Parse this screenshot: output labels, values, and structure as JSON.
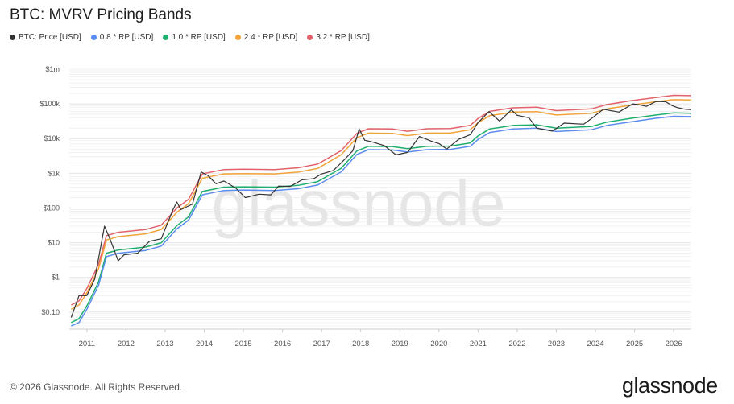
{
  "colors": {
    "price": "#333333",
    "rp08": "#5b8def",
    "rp10": "#1fae6e",
    "rp24": "#f2a33a",
    "rp32": "#e2636b"
  },
  "chart_data": {
    "type": "line",
    "title": "BTC: MVRV Pricing Bands",
    "y_scale": "log",
    "ylim": [
      0.04,
      1000000
    ],
    "y_ticks": [
      {
        "value": 0.1,
        "label": "$0.10"
      },
      {
        "value": 1,
        "label": "$1"
      },
      {
        "value": 10,
        "label": "$10"
      },
      {
        "value": 100,
        "label": "$100"
      },
      {
        "value": 1000,
        "label": "$1k"
      },
      {
        "value": 10000,
        "label": "$10k"
      },
      {
        "value": 100000,
        "label": "$100k"
      },
      {
        "value": 1000000,
        "label": "$1m"
      }
    ],
    "xlim": [
      2010.55,
      2026.45
    ],
    "x_ticks": [
      "2011",
      "2012",
      "2013",
      "2014",
      "2015",
      "2016",
      "2017",
      "2018",
      "2019",
      "2020",
      "2021",
      "2022",
      "2023",
      "2024",
      "2025",
      "2026"
    ],
    "grid": true,
    "legend_position": "top-left",
    "watermark": "glassnode",
    "series": [
      {
        "name": "BTC: Price [USD]",
        "color_key": "price",
        "points": [
          [
            2010.6,
            0.07
          ],
          [
            2010.8,
            0.3
          ],
          [
            2011.0,
            0.3
          ],
          [
            2011.2,
            0.9
          ],
          [
            2011.45,
            30
          ],
          [
            2011.6,
            12
          ],
          [
            2011.8,
            3
          ],
          [
            2011.95,
            4.5
          ],
          [
            2012.3,
            5
          ],
          [
            2012.6,
            11
          ],
          [
            2012.9,
            13
          ],
          [
            2013.2,
            90
          ],
          [
            2013.3,
            150
          ],
          [
            2013.4,
            90
          ],
          [
            2013.7,
            130
          ],
          [
            2013.92,
            1100
          ],
          [
            2014.1,
            850
          ],
          [
            2014.3,
            500
          ],
          [
            2014.5,
            600
          ],
          [
            2014.8,
            380
          ],
          [
            2015.05,
            200
          ],
          [
            2015.4,
            250
          ],
          [
            2015.7,
            240
          ],
          [
            2015.9,
            430
          ],
          [
            2016.2,
            420
          ],
          [
            2016.5,
            650
          ],
          [
            2016.8,
            700
          ],
          [
            2016.99,
            950
          ],
          [
            2017.3,
            1200
          ],
          [
            2017.6,
            2600
          ],
          [
            2017.8,
            4500
          ],
          [
            2017.96,
            19000
          ],
          [
            2018.1,
            9000
          ],
          [
            2018.3,
            8000
          ],
          [
            2018.6,
            6300
          ],
          [
            2018.9,
            3400
          ],
          [
            2019.2,
            4000
          ],
          [
            2019.5,
            11500
          ],
          [
            2019.8,
            8500
          ],
          [
            2020.0,
            7200
          ],
          [
            2020.2,
            5000
          ],
          [
            2020.5,
            9500
          ],
          [
            2020.8,
            13000
          ],
          [
            2021.0,
            29000
          ],
          [
            2021.28,
            60000
          ],
          [
            2021.55,
            32000
          ],
          [
            2021.85,
            67000
          ],
          [
            2022.0,
            47000
          ],
          [
            2022.3,
            40000
          ],
          [
            2022.5,
            20000
          ],
          [
            2022.9,
            16500
          ],
          [
            2023.2,
            28000
          ],
          [
            2023.7,
            26000
          ],
          [
            2023.95,
            42000
          ],
          [
            2024.2,
            70000
          ],
          [
            2024.6,
            58000
          ],
          [
            2024.95,
            100000
          ],
          [
            2025.1,
            95000
          ],
          [
            2025.3,
            85000
          ],
          [
            2025.55,
            118000
          ],
          [
            2025.8,
            115000
          ],
          [
            2025.95,
            90000
          ],
          [
            2026.1,
            78000
          ],
          [
            2026.3,
            70000
          ],
          [
            2026.45,
            68000
          ]
        ]
      },
      {
        "name": "0.8 * RP [USD]",
        "color_key": "rp08",
        "points": [
          [
            2010.6,
            0.04
          ],
          [
            2010.8,
            0.05
          ],
          [
            2011.0,
            0.12
          ],
          [
            2011.3,
            0.6
          ],
          [
            2011.5,
            4
          ],
          [
            2011.8,
            5
          ],
          [
            2012.5,
            6
          ],
          [
            2012.9,
            8
          ],
          [
            2013.3,
            25
          ],
          [
            2013.6,
            45
          ],
          [
            2013.95,
            240
          ],
          [
            2014.5,
            320
          ],
          [
            2015.0,
            330
          ],
          [
            2015.8,
            320
          ],
          [
            2016.4,
            360
          ],
          [
            2016.9,
            460
          ],
          [
            2017.5,
            1100
          ],
          [
            2017.9,
            3500
          ],
          [
            2018.2,
            4800
          ],
          [
            2018.8,
            4700
          ],
          [
            2019.2,
            4100
          ],
          [
            2019.7,
            4800
          ],
          [
            2020.3,
            4900
          ],
          [
            2020.8,
            6000
          ],
          [
            2021.0,
            9500
          ],
          [
            2021.3,
            15000
          ],
          [
            2021.9,
            19000
          ],
          [
            2022.5,
            20000
          ],
          [
            2023.0,
            16000
          ],
          [
            2023.9,
            18000
          ],
          [
            2024.3,
            24000
          ],
          [
            2024.95,
            31000
          ],
          [
            2025.5,
            38000
          ],
          [
            2026.0,
            44000
          ],
          [
            2026.45,
            43000
          ]
        ]
      },
      {
        "name": "1.0 * RP [USD]",
        "color_key": "rp10",
        "points": [
          [
            2010.6,
            0.05
          ],
          [
            2010.8,
            0.065
          ],
          [
            2011.0,
            0.15
          ],
          [
            2011.3,
            0.75
          ],
          [
            2011.5,
            5
          ],
          [
            2011.8,
            6.2
          ],
          [
            2012.5,
            7.5
          ],
          [
            2012.9,
            10
          ],
          [
            2013.3,
            31
          ],
          [
            2013.6,
            56
          ],
          [
            2013.95,
            300
          ],
          [
            2014.5,
            400
          ],
          [
            2015.0,
            410
          ],
          [
            2015.8,
            400
          ],
          [
            2016.4,
            450
          ],
          [
            2016.9,
            575
          ],
          [
            2017.5,
            1400
          ],
          [
            2017.9,
            4400
          ],
          [
            2018.2,
            6000
          ],
          [
            2018.8,
            5900
          ],
          [
            2019.2,
            5100
          ],
          [
            2019.7,
            6000
          ],
          [
            2020.3,
            6100
          ],
          [
            2020.8,
            7500
          ],
          [
            2021.0,
            12000
          ],
          [
            2021.3,
            19000
          ],
          [
            2021.9,
            24000
          ],
          [
            2022.5,
            25000
          ],
          [
            2023.0,
            20000
          ],
          [
            2023.9,
            22500
          ],
          [
            2024.3,
            30000
          ],
          [
            2024.95,
            39000
          ],
          [
            2025.5,
            47000
          ],
          [
            2026.0,
            55000
          ],
          [
            2026.45,
            54000
          ]
        ]
      },
      {
        "name": "2.4 * RP [USD]",
        "color_key": "rp24",
        "points": [
          [
            2010.6,
            0.12
          ],
          [
            2010.8,
            0.16
          ],
          [
            2011.0,
            0.36
          ],
          [
            2011.3,
            1.8
          ],
          [
            2011.5,
            12
          ],
          [
            2011.8,
            15
          ],
          [
            2012.5,
            18
          ],
          [
            2012.9,
            24
          ],
          [
            2013.3,
            75
          ],
          [
            2013.6,
            135
          ],
          [
            2013.95,
            720
          ],
          [
            2014.5,
            960
          ],
          [
            2015.0,
            980
          ],
          [
            2015.8,
            960
          ],
          [
            2016.4,
            1080
          ],
          [
            2016.9,
            1380
          ],
          [
            2017.5,
            3400
          ],
          [
            2017.9,
            10600
          ],
          [
            2018.2,
            14400
          ],
          [
            2018.8,
            14200
          ],
          [
            2019.2,
            12200
          ],
          [
            2019.7,
            14400
          ],
          [
            2020.3,
            14600
          ],
          [
            2020.8,
            18000
          ],
          [
            2021.0,
            29000
          ],
          [
            2021.3,
            46000
          ],
          [
            2021.9,
            58000
          ],
          [
            2022.5,
            60000
          ],
          [
            2023.0,
            48000
          ],
          [
            2023.9,
            54000
          ],
          [
            2024.3,
            72000
          ],
          [
            2024.95,
            94000
          ],
          [
            2025.5,
            113000
          ],
          [
            2026.0,
            132000
          ],
          [
            2026.45,
            130000
          ]
        ]
      },
      {
        "name": "3.2 * RP [USD]",
        "color_key": "rp32",
        "points": [
          [
            2010.6,
            0.16
          ],
          [
            2010.8,
            0.21
          ],
          [
            2011.0,
            0.48
          ],
          [
            2011.3,
            2.4
          ],
          [
            2011.5,
            16
          ],
          [
            2011.8,
            20
          ],
          [
            2012.5,
            24
          ],
          [
            2012.9,
            32
          ],
          [
            2013.3,
            100
          ],
          [
            2013.6,
            180
          ],
          [
            2013.95,
            960
          ],
          [
            2014.5,
            1280
          ],
          [
            2015.0,
            1310
          ],
          [
            2015.8,
            1280
          ],
          [
            2016.4,
            1440
          ],
          [
            2016.9,
            1840
          ],
          [
            2017.5,
            4500
          ],
          [
            2017.9,
            14100
          ],
          [
            2018.2,
            19200
          ],
          [
            2018.8,
            18900
          ],
          [
            2019.2,
            16300
          ],
          [
            2019.7,
            19200
          ],
          [
            2020.3,
            19500
          ],
          [
            2020.8,
            24000
          ],
          [
            2021.0,
            38000
          ],
          [
            2021.3,
            61000
          ],
          [
            2021.9,
            77000
          ],
          [
            2022.5,
            80000
          ],
          [
            2023.0,
            64000
          ],
          [
            2023.9,
            72000
          ],
          [
            2024.3,
            96000
          ],
          [
            2024.95,
            125000
          ],
          [
            2025.5,
            150000
          ],
          [
            2026.0,
            176000
          ],
          [
            2026.45,
            173000
          ]
        ]
      }
    ]
  },
  "footer": {
    "copyright": "© 2026 Glassnode. All Rights Reserved.",
    "brand": "glassnode"
  }
}
